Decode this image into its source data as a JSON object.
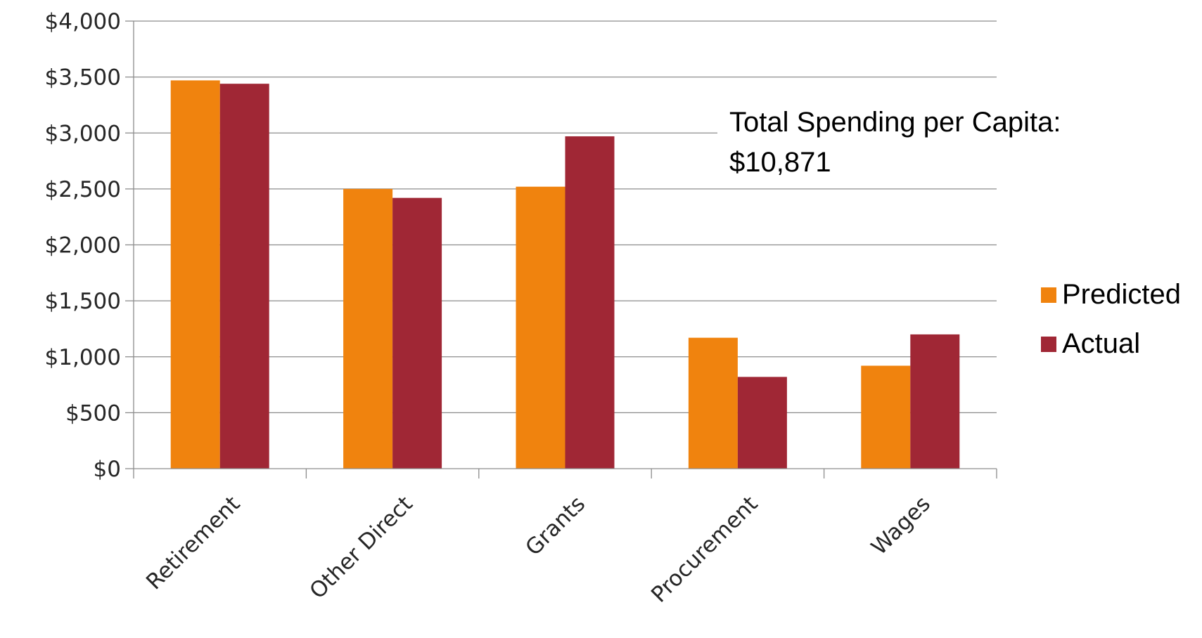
{
  "chart_data": {
    "type": "bar",
    "categories": [
      "Retirement",
      "Other Direct",
      "Grants",
      "Procurement",
      "Wages"
    ],
    "series": [
      {
        "name": "Predicted",
        "color": "#f0830e",
        "values": [
          3470,
          2500,
          2520,
          1170,
          920
        ]
      },
      {
        "name": "Actual",
        "color": "#a02735",
        "values": [
          3440,
          2420,
          2970,
          820,
          1200
        ]
      }
    ],
    "ylim": [
      0,
      4000
    ],
    "ytick_values": [
      0,
      500,
      1000,
      1500,
      2000,
      2500,
      3000,
      3500,
      4000
    ],
    "ytick_labels": [
      "$0",
      "$500",
      "$1,000",
      "$1,500",
      "$2,000",
      "$2,500",
      "$3,000",
      "$3,500",
      "$4,000"
    ],
    "grid": true,
    "legend_position": "right",
    "annotation": {
      "line1": "Total Spending per Capita:",
      "line2": "$10,871"
    }
  }
}
